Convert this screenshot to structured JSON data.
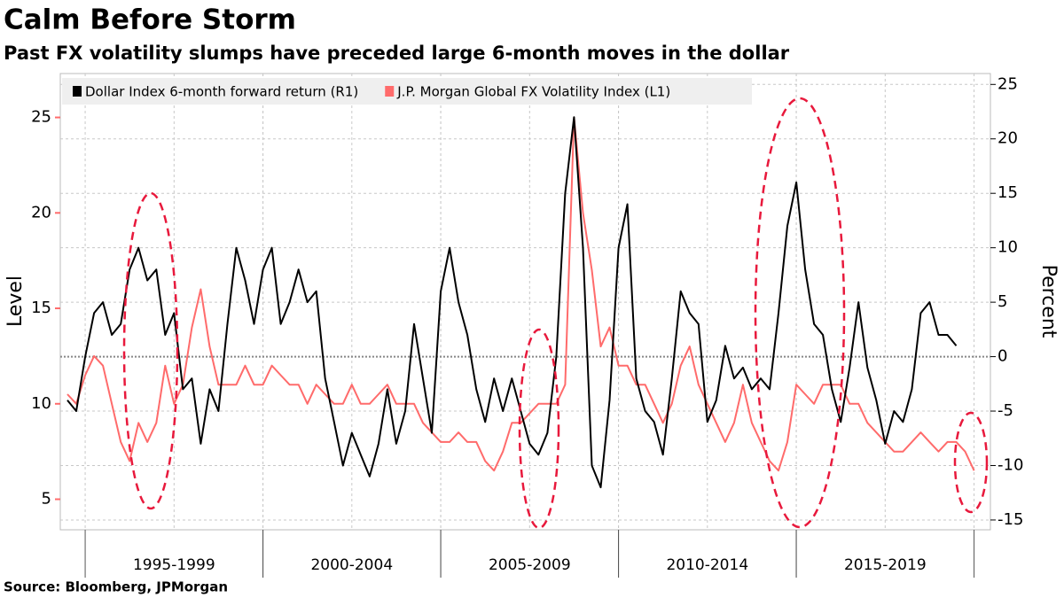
{
  "chart_data": {
    "type": "line",
    "title": "Calm Before Storm",
    "subtitle": "Past FX volatility slumps have preceded large 6-month moves in the dollar",
    "source": "Source: Bloomberg, JPMorgan",
    "y_label": "Level",
    "y2_label": "Percent",
    "xlim": [
      1994.3,
      2020.46
    ],
    "xticks": [
      {
        "value": 1997.5,
        "label": "1995-1999"
      },
      {
        "value": 2002.5,
        "label": "2000-2004"
      },
      {
        "value": 2007.5,
        "label": "2005-2009"
      },
      {
        "value": 2012.5,
        "label": "2010-2014"
      },
      {
        "value": 2017.5,
        "label": "2015-2019"
      }
    ],
    "ylim": [
      3.4,
      27.3
    ],
    "yticks": [
      5,
      10,
      15,
      20,
      25
    ],
    "y2lim": [
      -15.9,
      26
    ],
    "y2ticks": [
      -15,
      -10,
      -5,
      0,
      5,
      10,
      15,
      20,
      25
    ],
    "grid": true,
    "x": [
      1994.5,
      1994.75,
      1995,
      1995.25,
      1995.5,
      1995.75,
      1996,
      1996.25,
      1996.5,
      1996.75,
      1997,
      1997.25,
      1997.5,
      1997.75,
      1998,
      1998.25,
      1998.5,
      1998.75,
      1999,
      1999.25,
      1999.5,
      1999.75,
      2000,
      2000.25,
      2000.5,
      2000.75,
      2001,
      2001.25,
      2001.5,
      2001.75,
      2002,
      2002.25,
      2002.5,
      2002.75,
      2003,
      2003.25,
      2003.5,
      2003.75,
      2004,
      2004.25,
      2004.5,
      2004.75,
      2005,
      2005.25,
      2005.5,
      2005.75,
      2006,
      2006.25,
      2006.5,
      2006.75,
      2007,
      2007.25,
      2007.5,
      2007.75,
      2008,
      2008.25,
      2008.5,
      2008.75,
      2009,
      2009.25,
      2009.5,
      2009.75,
      2010,
      2010.25,
      2010.5,
      2010.75,
      2011,
      2011.25,
      2011.5,
      2011.75,
      2012,
      2012.25,
      2012.5,
      2012.75,
      2013,
      2013.25,
      2013.5,
      2013.75,
      2014,
      2014.25,
      2014.5,
      2014.75,
      2015,
      2015.25,
      2015.5,
      2015.75,
      2016,
      2016.25,
      2016.5,
      2016.75,
      2017,
      2017.25,
      2017.5,
      2017.75,
      2018,
      2018.25,
      2018.5,
      2018.75,
      2019,
      2019.25,
      2019.5,
      2019.75,
      2020
    ],
    "series": [
      {
        "name": "Dollar Index 6-month forward return (R1)",
        "color": "#000000",
        "axis": "y2",
        "values": [
          -4,
          -5,
          0,
          4,
          5,
          2,
          3,
          8,
          10,
          7,
          8,
          2,
          4,
          -3,
          -2,
          -8,
          -3,
          -5,
          3,
          10,
          7,
          3,
          8,
          10,
          3,
          5,
          8,
          5,
          6,
          -2,
          -6,
          -10,
          -7,
          -9,
          -11,
          -8,
          -3,
          -8,
          -5,
          3,
          -2,
          -7,
          6,
          10,
          5,
          2,
          -3,
          -6,
          -2,
          -5,
          -2,
          -5,
          -8,
          -9,
          -7,
          0,
          15,
          22,
          10,
          -10,
          -12,
          -4,
          10,
          14,
          -2,
          -5,
          -6,
          -9,
          -2,
          6,
          4,
          3,
          -6,
          -4,
          1,
          -2,
          -1,
          -3,
          -2,
          -3,
          4,
          12,
          16,
          8,
          3,
          2,
          -3,
          -6,
          -1,
          5,
          -1,
          -4,
          -8,
          -5,
          -6,
          -3,
          4,
          5,
          2,
          2,
          1,
          null,
          null
        ]
      },
      {
        "name": "J.P. Morgan Global FX Volatility Index  (L1)",
        "color": "#ff6b6b",
        "values": [
          10.5,
          10,
          11.5,
          12.5,
          12,
          10,
          8,
          7,
          9,
          8,
          9,
          12,
          10,
          11,
          14,
          16,
          13,
          11,
          11,
          11,
          12,
          11,
          11,
          12,
          11.5,
          11,
          11,
          10,
          11,
          10.5,
          10,
          10,
          11,
          10,
          10,
          10.5,
          11,
          10,
          10,
          10,
          9,
          8.5,
          8,
          8,
          8.5,
          8,
          8,
          7,
          6.5,
          7.5,
          9,
          9,
          9.5,
          10,
          10,
          10,
          11,
          25,
          20,
          17,
          13,
          14,
          12,
          12,
          11,
          11,
          10,
          9,
          10,
          12,
          13,
          11,
          10,
          9,
          8,
          9,
          11,
          9,
          8,
          7,
          6.5,
          8,
          11,
          10.5,
          10,
          11,
          11,
          11,
          10,
          10,
          9,
          8.5,
          8,
          7.5,
          7.5,
          8,
          8.5,
          8,
          7.5,
          8,
          8,
          7.5,
          6.5
        ]
      }
    ]
  }
}
